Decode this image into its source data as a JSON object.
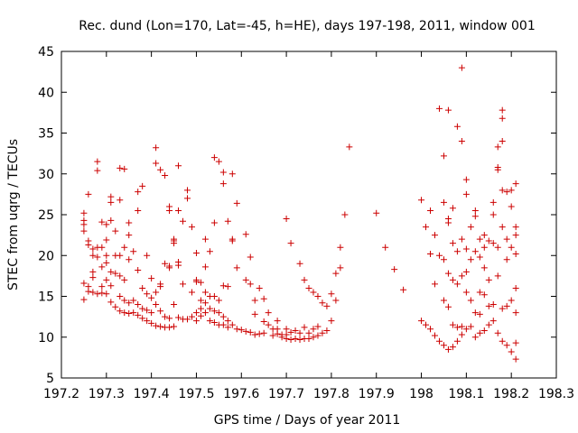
{
  "chart_data": {
    "type": "scatter",
    "title": "Rec. dund (Lon=170, Lat=-45, h=HE), days 197-198, 2011, window 001",
    "xlabel": "GPS time / Days of year 2011",
    "ylabel": "STEC from uqrg / TECUs",
    "xlim": [
      197.2,
      198.3
    ],
    "ylim": [
      5,
      45
    ],
    "xticks": [
      "197.2",
      "197.3",
      "197.4",
      "197.5",
      "197.6",
      "197.7",
      "197.8",
      "197.9",
      "198",
      "198.1",
      "198.2",
      "198.3"
    ],
    "yticks": [
      "5",
      "10",
      "15",
      "20",
      "25",
      "30",
      "35",
      "40",
      "45"
    ],
    "grid": false,
    "marker": "+",
    "color": "#cc0000",
    "points": [
      [
        197.25,
        25.2
      ],
      [
        197.25,
        24.3
      ],
      [
        197.25,
        23.8
      ],
      [
        197.25,
        23.0
      ],
      [
        197.25,
        16.6
      ],
      [
        197.25,
        14.6
      ],
      [
        197.26,
        27.5
      ],
      [
        197.26,
        21.8
      ],
      [
        197.26,
        21.3
      ],
      [
        197.26,
        16.2
      ],
      [
        197.26,
        15.6
      ],
      [
        197.27,
        20.8
      ],
      [
        197.27,
        20.0
      ],
      [
        197.27,
        18.0
      ],
      [
        197.27,
        17.3
      ],
      [
        197.27,
        15.5
      ],
      [
        197.28,
        31.5
      ],
      [
        197.28,
        30.4
      ],
      [
        197.28,
        21.0
      ],
      [
        197.28,
        19.8
      ],
      [
        197.28,
        15.3
      ],
      [
        197.29,
        24.1
      ],
      [
        197.29,
        21.0
      ],
      [
        197.29,
        18.6
      ],
      [
        197.29,
        16.2
      ],
      [
        197.29,
        15.4
      ],
      [
        197.3,
        23.8
      ],
      [
        197.3,
        21.9
      ],
      [
        197.3,
        20.0
      ],
      [
        197.3,
        19.1
      ],
      [
        197.3,
        17.0
      ],
      [
        197.3,
        15.3
      ],
      [
        197.31,
        27.2
      ],
      [
        197.31,
        26.5
      ],
      [
        197.31,
        24.3
      ],
      [
        197.31,
        18.0
      ],
      [
        197.31,
        16.3
      ],
      [
        197.31,
        14.3
      ],
      [
        197.32,
        23.0
      ],
      [
        197.32,
        20.0
      ],
      [
        197.32,
        17.8
      ],
      [
        197.32,
        13.7
      ],
      [
        197.33,
        30.7
      ],
      [
        197.33,
        26.8
      ],
      [
        197.33,
        20.0
      ],
      [
        197.33,
        17.5
      ],
      [
        197.33,
        15.0
      ],
      [
        197.33,
        13.2
      ],
      [
        197.34,
        30.6
      ],
      [
        197.34,
        21.0
      ],
      [
        197.34,
        17.0
      ],
      [
        197.34,
        14.5
      ],
      [
        197.34,
        13.0
      ],
      [
        197.35,
        24.0
      ],
      [
        197.35,
        22.5
      ],
      [
        197.35,
        19.5
      ],
      [
        197.35,
        14.2
      ],
      [
        197.35,
        12.9
      ],
      [
        197.36,
        20.5
      ],
      [
        197.36,
        14.5
      ],
      [
        197.36,
        13.0
      ],
      [
        197.37,
        27.8
      ],
      [
        197.37,
        25.5
      ],
      [
        197.37,
        18.2
      ],
      [
        197.37,
        14.0
      ],
      [
        197.37,
        12.7
      ],
      [
        197.38,
        28.5
      ],
      [
        197.38,
        16.0
      ],
      [
        197.38,
        13.5
      ],
      [
        197.38,
        12.3
      ],
      [
        197.39,
        20.0
      ],
      [
        197.39,
        15.3
      ],
      [
        197.39,
        13.3
      ],
      [
        197.39,
        12.0
      ],
      [
        197.4,
        17.2
      ],
      [
        197.4,
        14.8
      ],
      [
        197.4,
        13.0
      ],
      [
        197.4,
        11.7
      ],
      [
        197.41,
        33.2
      ],
      [
        197.41,
        31.3
      ],
      [
        197.41,
        15.5
      ],
      [
        197.41,
        14.0
      ],
      [
        197.41,
        11.4
      ],
      [
        197.42,
        30.5
      ],
      [
        197.42,
        16.5
      ],
      [
        197.42,
        16.2
      ],
      [
        197.42,
        13.2
      ],
      [
        197.42,
        11.3
      ],
      [
        197.43,
        29.8
      ],
      [
        197.43,
        19.0
      ],
      [
        197.43,
        12.5
      ],
      [
        197.43,
        11.2
      ],
      [
        197.44,
        26.0
      ],
      [
        197.44,
        25.5
      ],
      [
        197.44,
        18.7
      ],
      [
        197.44,
        18.5
      ],
      [
        197.44,
        12.3
      ],
      [
        197.44,
        11.2
      ],
      [
        197.45,
        22.0
      ],
      [
        197.45,
        21.8
      ],
      [
        197.45,
        21.5
      ],
      [
        197.45,
        14.0
      ],
      [
        197.45,
        11.3
      ],
      [
        197.46,
        31.0
      ],
      [
        197.46,
        25.5
      ],
      [
        197.46,
        19.2
      ],
      [
        197.46,
        18.8
      ],
      [
        197.46,
        12.4
      ],
      [
        197.47,
        24.2
      ],
      [
        197.47,
        16.5
      ],
      [
        197.47,
        12.2
      ],
      [
        197.48,
        28.0
      ],
      [
        197.48,
        27.0
      ],
      [
        197.48,
        12.2
      ],
      [
        197.49,
        23.5
      ],
      [
        197.49,
        15.5
      ],
      [
        197.49,
        12.5
      ],
      [
        197.5,
        20.3
      ],
      [
        197.5,
        17.0
      ],
      [
        197.5,
        16.8
      ],
      [
        197.5,
        13.0
      ],
      [
        197.5,
        12.0
      ],
      [
        197.51,
        16.7
      ],
      [
        197.51,
        14.5
      ],
      [
        197.51,
        13.5
      ],
      [
        197.51,
        12.6
      ],
      [
        197.52,
        22.0
      ],
      [
        197.52,
        18.6
      ],
      [
        197.52,
        15.5
      ],
      [
        197.52,
        14.2
      ],
      [
        197.52,
        13.0
      ],
      [
        197.53,
        20.5
      ],
      [
        197.53,
        15.0
      ],
      [
        197.53,
        13.5
      ],
      [
        197.53,
        12.0
      ],
      [
        197.54,
        32.0
      ],
      [
        197.54,
        24.0
      ],
      [
        197.54,
        15.0
      ],
      [
        197.54,
        13.2
      ],
      [
        197.54,
        11.8
      ],
      [
        197.55,
        31.5
      ],
      [
        197.55,
        14.5
      ],
      [
        197.55,
        13.0
      ],
      [
        197.55,
        11.5
      ],
      [
        197.56,
        30.2
      ],
      [
        197.56,
        28.8
      ],
      [
        197.56,
        16.3
      ],
      [
        197.56,
        12.5
      ],
      [
        197.56,
        11.5
      ],
      [
        197.57,
        24.2
      ],
      [
        197.57,
        16.2
      ],
      [
        197.57,
        12.0
      ],
      [
        197.57,
        11.2
      ],
      [
        197.58,
        30.0
      ],
      [
        197.58,
        22.0
      ],
      [
        197.58,
        21.8
      ],
      [
        197.58,
        11.5
      ],
      [
        197.59,
        26.4
      ],
      [
        197.59,
        18.5
      ],
      [
        197.59,
        11.0
      ],
      [
        197.6,
        10.9
      ],
      [
        197.61,
        22.6
      ],
      [
        197.61,
        17.0
      ],
      [
        197.61,
        10.7
      ],
      [
        197.62,
        19.8
      ],
      [
        197.62,
        16.5
      ],
      [
        197.62,
        10.6
      ],
      [
        197.63,
        14.5
      ],
      [
        197.63,
        12.8
      ],
      [
        197.63,
        10.3
      ],
      [
        197.64,
        16.0
      ],
      [
        197.64,
        10.4
      ],
      [
        197.65,
        14.7
      ],
      [
        197.65,
        11.9
      ],
      [
        197.65,
        10.5
      ],
      [
        197.66,
        13.0
      ],
      [
        197.66,
        11.5
      ],
      [
        197.67,
        11.0
      ],
      [
        197.67,
        10.2
      ],
      [
        197.68,
        12.0
      ],
      [
        197.68,
        11.0
      ],
      [
        197.68,
        10.4
      ],
      [
        197.69,
        10.3
      ],
      [
        197.69,
        10.0
      ],
      [
        197.7,
        24.5
      ],
      [
        197.7,
        11.0
      ],
      [
        197.7,
        10.3
      ],
      [
        197.7,
        9.8
      ],
      [
        197.71,
        21.5
      ],
      [
        197.71,
        10.6
      ],
      [
        197.71,
        9.7
      ],
      [
        197.72,
        10.8
      ],
      [
        197.72,
        9.8
      ],
      [
        197.73,
        19.0
      ],
      [
        197.73,
        10.5
      ],
      [
        197.73,
        9.7
      ],
      [
        197.74,
        17.0
      ],
      [
        197.74,
        11.2
      ],
      [
        197.74,
        9.8
      ],
      [
        197.75,
        16.0
      ],
      [
        197.75,
        10.5
      ],
      [
        197.75,
        9.8
      ],
      [
        197.76,
        15.5
      ],
      [
        197.76,
        11.0
      ],
      [
        197.76,
        10.0
      ],
      [
        197.77,
        15.0
      ],
      [
        197.77,
        11.3
      ],
      [
        197.77,
        10.2
      ],
      [
        197.78,
        14.2
      ],
      [
        197.78,
        10.5
      ],
      [
        197.79,
        13.8
      ],
      [
        197.79,
        10.8
      ],
      [
        197.8,
        15.3
      ],
      [
        197.8,
        12.0
      ],
      [
        197.81,
        14.5
      ],
      [
        197.81,
        17.8
      ],
      [
        197.82,
        18.5
      ],
      [
        197.82,
        21.0
      ],
      [
        197.83,
        25.0
      ],
      [
        197.84,
        33.3
      ],
      [
        197.9,
        25.2
      ],
      [
        197.92,
        21.0
      ],
      [
        197.94,
        18.3
      ],
      [
        197.96,
        15.8
      ],
      [
        198.0,
        26.8
      ],
      [
        198.0,
        12.0
      ],
      [
        198.01,
        23.5
      ],
      [
        198.01,
        11.5
      ],
      [
        198.02,
        25.5
      ],
      [
        198.02,
        20.2
      ],
      [
        198.02,
        11.0
      ],
      [
        198.03,
        22.5
      ],
      [
        198.03,
        16.5
      ],
      [
        198.03,
        10.2
      ],
      [
        198.04,
        38.0
      ],
      [
        198.04,
        20.0
      ],
      [
        198.04,
        9.5
      ],
      [
        198.05,
        32.2
      ],
      [
        198.05,
        26.5
      ],
      [
        198.05,
        19.5
      ],
      [
        198.05,
        14.5
      ],
      [
        198.05,
        9.0
      ],
      [
        198.06,
        37.8
      ],
      [
        198.06,
        24.5
      ],
      [
        198.06,
        24.0
      ],
      [
        198.06,
        17.8
      ],
      [
        198.06,
        13.7
      ],
      [
        198.06,
        8.5
      ],
      [
        198.07,
        25.8
      ],
      [
        198.07,
        21.5
      ],
      [
        198.07,
        17.0
      ],
      [
        198.07,
        11.5
      ],
      [
        198.07,
        8.8
      ],
      [
        198.08,
        35.8
      ],
      [
        198.08,
        20.5
      ],
      [
        198.08,
        16.5
      ],
      [
        198.08,
        11.2
      ],
      [
        198.08,
        9.5
      ],
      [
        198.09,
        43.0
      ],
      [
        198.09,
        34.0
      ],
      [
        198.09,
        22.0
      ],
      [
        198.09,
        17.5
      ],
      [
        198.09,
        11.3
      ],
      [
        198.09,
        10.3
      ],
      [
        198.1,
        29.3
      ],
      [
        198.1,
        27.5
      ],
      [
        198.1,
        20.8
      ],
      [
        198.1,
        18.0
      ],
      [
        198.1,
        15.5
      ],
      [
        198.1,
        11.0
      ],
      [
        198.11,
        23.5
      ],
      [
        198.11,
        19.5
      ],
      [
        198.11,
        14.5
      ],
      [
        198.11,
        11.3
      ],
      [
        198.12,
        25.5
      ],
      [
        198.12,
        24.8
      ],
      [
        198.12,
        20.5
      ],
      [
        198.12,
        13.0
      ],
      [
        198.12,
        10.0
      ],
      [
        198.13,
        22.0
      ],
      [
        198.13,
        19.8
      ],
      [
        198.13,
        15.5
      ],
      [
        198.13,
        12.8
      ],
      [
        198.13,
        10.5
      ],
      [
        198.14,
        22.5
      ],
      [
        198.14,
        21.0
      ],
      [
        198.14,
        18.5
      ],
      [
        198.14,
        15.2
      ],
      [
        198.14,
        10.8
      ],
      [
        198.15,
        21.8
      ],
      [
        198.15,
        17.0
      ],
      [
        198.15,
        13.8
      ],
      [
        198.15,
        11.5
      ],
      [
        198.16,
        26.5
      ],
      [
        198.16,
        25.0
      ],
      [
        198.16,
        21.5
      ],
      [
        198.16,
        14.0
      ],
      [
        198.16,
        12.0
      ],
      [
        198.17,
        33.3
      ],
      [
        198.17,
        30.8
      ],
      [
        198.17,
        30.5
      ],
      [
        198.17,
        21.0
      ],
      [
        198.17,
        17.5
      ],
      [
        198.17,
        10.5
      ],
      [
        198.18,
        37.8
      ],
      [
        198.18,
        36.8
      ],
      [
        198.18,
        34.0
      ],
      [
        198.18,
        28.0
      ],
      [
        198.18,
        23.5
      ],
      [
        198.18,
        13.5
      ],
      [
        198.18,
        9.5
      ],
      [
        198.19,
        27.8
      ],
      [
        198.19,
        22.0
      ],
      [
        198.19,
        19.5
      ],
      [
        198.19,
        13.8
      ],
      [
        198.19,
        9.0
      ],
      [
        198.2,
        28.0
      ],
      [
        198.2,
        26.0
      ],
      [
        198.2,
        21.0
      ],
      [
        198.2,
        14.5
      ],
      [
        198.2,
        8.2
      ],
      [
        198.21,
        28.8
      ],
      [
        198.21,
        23.5
      ],
      [
        198.21,
        22.5
      ],
      [
        198.21,
        20.2
      ],
      [
        198.21,
        16.0
      ],
      [
        198.21,
        13.0
      ],
      [
        198.21,
        9.3
      ],
      [
        198.21,
        7.3
      ]
    ]
  }
}
